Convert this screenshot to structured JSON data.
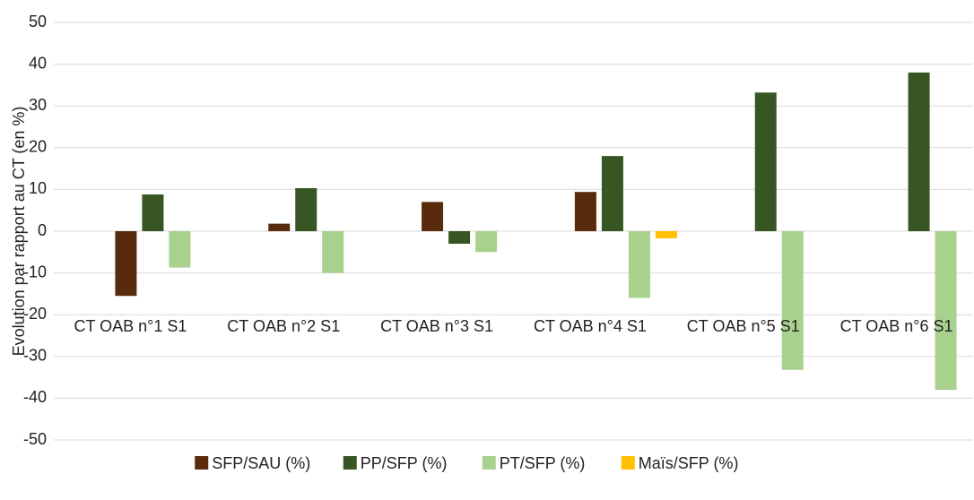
{
  "chart_data": {
    "type": "bar",
    "y_label": "Evolution par rapport au CT (en %)",
    "categories": [
      "CT OAB n°1 S1",
      "CT OAB n°2 S1",
      "CT OAB n°3 S1",
      "CT OAB n°4 S1",
      "CT OAB n°5 S1",
      "CT OAB n°6 S1"
    ],
    "series": [
      {
        "name": "SFP/SAU (%)",
        "color": "#5a2a0c",
        "values": [
          -15.5,
          1.8,
          7,
          9.4,
          null,
          null
        ]
      },
      {
        "name": "PP/SFP (%)",
        "color": "#375623",
        "values": [
          8.8,
          10.3,
          -3,
          18,
          33.2,
          38
        ]
      },
      {
        "name": "PT/SFP (%)",
        "color": "#a9d18e",
        "values": [
          -8.7,
          -10,
          -5,
          -16,
          -33.2,
          -38
        ]
      },
      {
        "name": "Maïs/SFP (%)",
        "color": "#ffc000",
        "values": [
          null,
          null,
          null,
          -1.7,
          null,
          null
        ]
      }
    ],
    "ylim": [
      -50,
      50
    ],
    "yticks": [
      -50,
      -40,
      -30,
      -20,
      -10,
      0,
      10,
      20,
      30,
      40,
      50
    ],
    "grid": true,
    "legend": "bottom"
  }
}
